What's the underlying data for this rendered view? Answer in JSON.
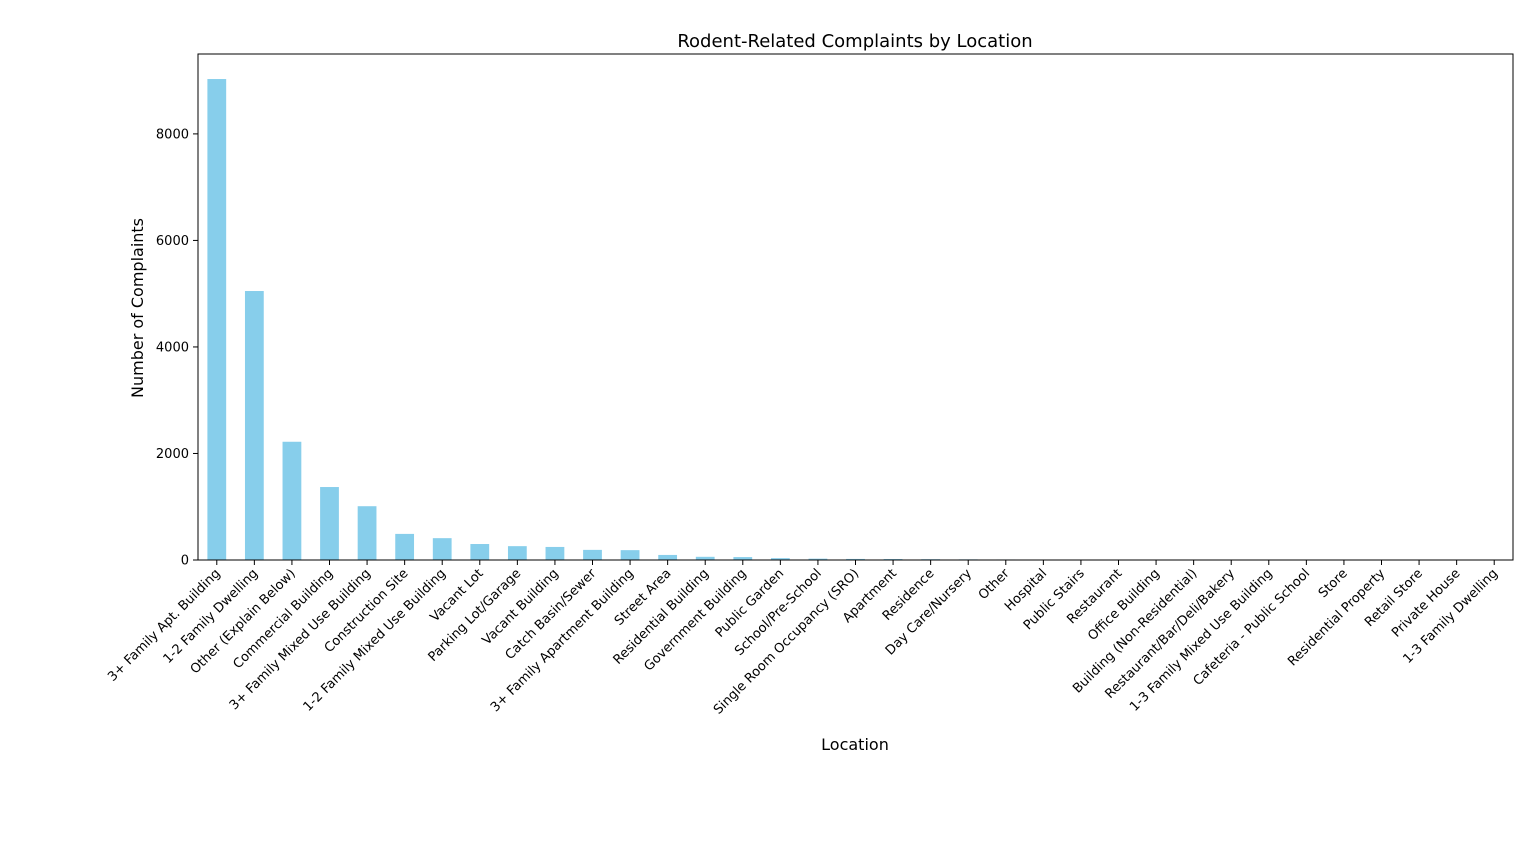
{
  "chart_data": {
    "type": "bar",
    "title": "Rodent-Related Complaints by Location",
    "xlabel": "Location",
    "ylabel": "Number of Complaints",
    "ylim": [
      0,
      9500
    ],
    "yticks": [
      0,
      2000,
      4000,
      6000,
      8000
    ],
    "grid": false,
    "colors": {
      "bar": "#87ceeb"
    },
    "categories": [
      "3+ Family Apt. Building",
      "1-2 Family Dwelling",
      "Other (Explain Below)",
      "Commercial Building",
      "3+ Family Mixed Use Building",
      "Construction Site",
      "1-2 Family Mixed Use Building",
      "Vacant Lot",
      "Parking Lot/Garage",
      "Vacant Building",
      "Catch Basin/Sewer",
      "3+ Family Apartment Building",
      "Street Area",
      "Residential Building",
      "Government Building",
      "Public Garden",
      "School/Pre-School",
      "Single Room Occupancy (SRO)",
      "Apartment",
      "Residence",
      "Day Care/Nursery",
      "Other",
      "Hospital",
      "Public Stairs",
      "Restaurant",
      "Office Building",
      "Building (Non-Residential)",
      "Restaurant/Bar/Deli/Bakery",
      "1-3 Family Mixed Use Building",
      "Cafeteria - Public School",
      "Store",
      "Residential Property",
      "Retail Store",
      "Private House",
      "1-3 Family Dwelling"
    ],
    "values": [
      9030,
      5050,
      2220,
      1370,
      1010,
      490,
      410,
      300,
      260,
      245,
      190,
      185,
      95,
      60,
      55,
      35,
      25,
      20,
      18,
      15,
      12,
      10,
      8,
      7,
      6,
      4,
      3,
      3,
      2,
      2,
      2,
      1,
      1,
      1,
      1
    ]
  }
}
